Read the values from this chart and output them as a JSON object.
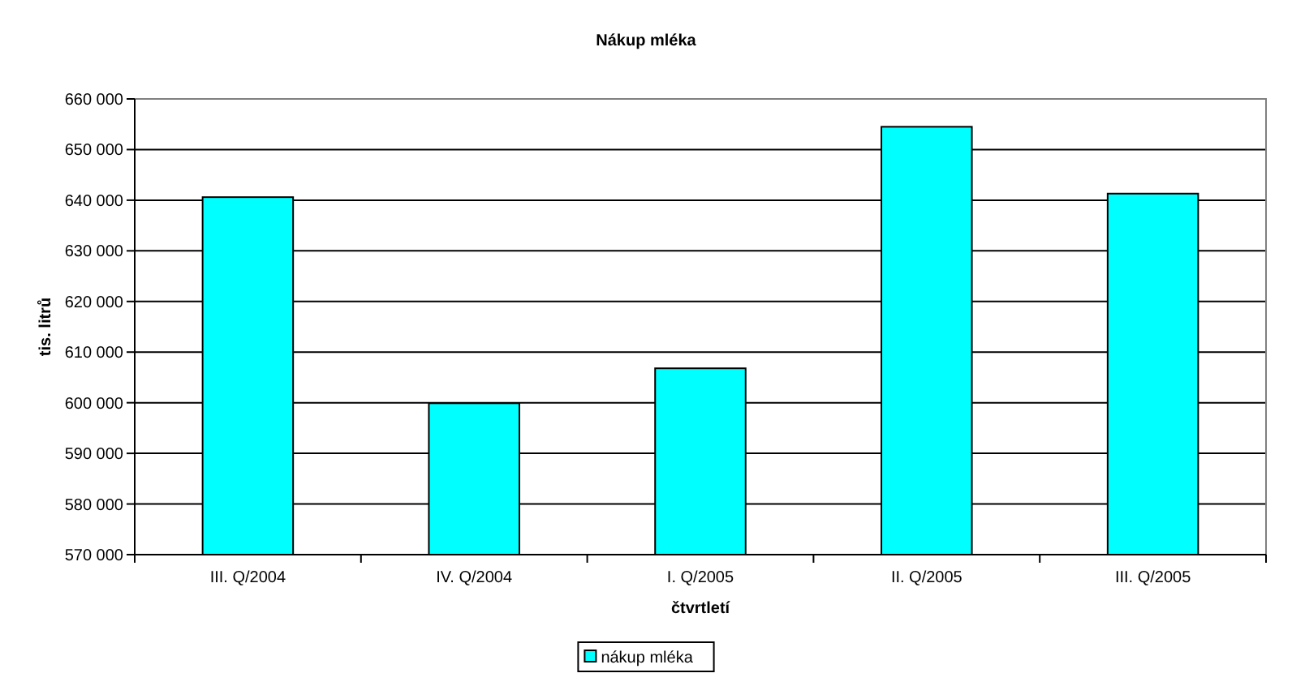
{
  "chart_data": {
    "type": "bar",
    "title": "Nákup mléka",
    "xlabel": "čtvrtletí",
    "ylabel": "tis. litrů",
    "categories": [
      "III. Q/2004",
      "IV. Q/2004",
      "I. Q/2005",
      "II. Q/2005",
      "III. Q/2005"
    ],
    "series": [
      {
        "name": "nákup mléka",
        "color": "#00ffff",
        "values": [
          640600,
          599900,
          606800,
          654500,
          641300
        ]
      }
    ],
    "ylim": [
      570000,
      660000
    ],
    "yticks": [
      {
        "value": 570000,
        "label": "570 000"
      },
      {
        "value": 580000,
        "label": "580 000"
      },
      {
        "value": 590000,
        "label": "590 000"
      },
      {
        "value": 600000,
        "label": "600 000"
      },
      {
        "value": 610000,
        "label": "610 000"
      },
      {
        "value": 620000,
        "label": "620 000"
      },
      {
        "value": 630000,
        "label": "630 000"
      },
      {
        "value": 640000,
        "label": "640 000"
      },
      {
        "value": 650000,
        "label": "650 000"
      },
      {
        "value": 660000,
        "label": "660 000"
      }
    ],
    "grid": "y",
    "legend": "bottom"
  }
}
